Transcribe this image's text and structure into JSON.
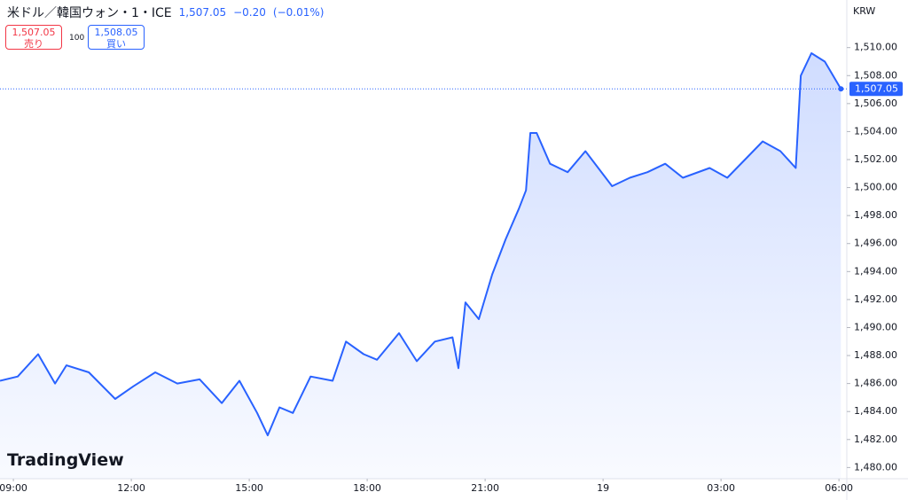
{
  "chart_data": {
    "type": "line",
    "title": "米ドル／韓国ウォン・1・ICE",
    "last_price": "1,507.05",
    "change": "−0.20",
    "change_pct": "(−0.01%)",
    "sell_price": "1,507.05",
    "sell_label": "売り",
    "quantity": "100",
    "buy_price": "1,508.05",
    "buy_label": "買い",
    "currency": "KRW",
    "last_price_label": "1,507.05",
    "brand": "TradingView",
    "x": [
      8.66,
      9.11,
      9.63,
      10.06,
      10.35,
      10.92,
      11.59,
      12.05,
      12.61,
      13.17,
      13.74,
      14.3,
      14.75,
      15.2,
      15.47,
      15.77,
      16.11,
      16.56,
      17.12,
      17.46,
      17.91,
      18.25,
      18.81,
      19.26,
      19.72,
      20.17,
      20.32,
      20.5,
      20.84,
      21.18,
      21.52,
      21.86,
      22.04,
      22.15,
      22.31,
      22.65,
      23.1,
      23.55,
      24.23,
      24.68,
      25.13,
      25.58,
      26.03,
      26.71,
      27.16,
      27.61,
      28.06,
      28.51,
      28.9,
      29.03,
      29.3,
      29.64,
      30.05
    ],
    "series": [
      {
        "name": "USD/KRW",
        "color": "#2962ff",
        "values": [
          1486.2,
          1486.5,
          1488.1,
          1486.0,
          1487.3,
          1486.8,
          1484.9,
          1485.8,
          1486.8,
          1486.0,
          1486.3,
          1484.6,
          1486.2,
          1483.9,
          1482.3,
          1484.3,
          1483.9,
          1486.5,
          1486.2,
          1489.0,
          1488.1,
          1487.7,
          1489.6,
          1487.6,
          1489.0,
          1489.3,
          1487.1,
          1491.8,
          1490.6,
          1493.8,
          1496.3,
          1498.5,
          1499.8,
          1503.9,
          1503.9,
          1501.7,
          1501.1,
          1502.6,
          1500.1,
          1500.7,
          1501.1,
          1501.7,
          1500.7,
          1501.4,
          1500.7,
          1502.0,
          1503.3,
          1502.6,
          1501.4,
          1508.0,
          1509.6,
          1509.0,
          1507.05
        ]
      }
    ],
    "xlim": [
      8.66,
      30.2
    ],
    "xticks": [
      {
        "value": 9,
        "label": "09:00"
      },
      {
        "value": 12,
        "label": "12:00"
      },
      {
        "value": 15,
        "label": "15:00"
      },
      {
        "value": 18,
        "label": "18:00"
      },
      {
        "value": 21,
        "label": "21:00"
      },
      {
        "value": 24,
        "label": "19"
      },
      {
        "value": 27,
        "label": "03:00"
      },
      {
        "value": 30,
        "label": "06:00"
      }
    ],
    "ylim": [
      1479.2,
      1513.4
    ],
    "yticks": [
      {
        "value": 1480,
        "label": "1,480.00"
      },
      {
        "value": 1482,
        "label": "1,482.00"
      },
      {
        "value": 1484,
        "label": "1,484.00"
      },
      {
        "value": 1486,
        "label": "1,486.00"
      },
      {
        "value": 1488,
        "label": "1,488.00"
      },
      {
        "value": 1490,
        "label": "1,490.00"
      },
      {
        "value": 1492,
        "label": "1,492.00"
      },
      {
        "value": 1494,
        "label": "1,494.00"
      },
      {
        "value": 1496,
        "label": "1,496.00"
      },
      {
        "value": 1498,
        "label": "1,498.00"
      },
      {
        "value": 1500,
        "label": "1,500.00"
      },
      {
        "value": 1502,
        "label": "1,502.00"
      },
      {
        "value": 1504,
        "label": "1,504.00"
      },
      {
        "value": 1506,
        "label": "1,506.00"
      },
      {
        "value": 1508,
        "label": "1,508.00"
      },
      {
        "value": 1510,
        "label": "1,510.00"
      }
    ],
    "grid": false
  }
}
